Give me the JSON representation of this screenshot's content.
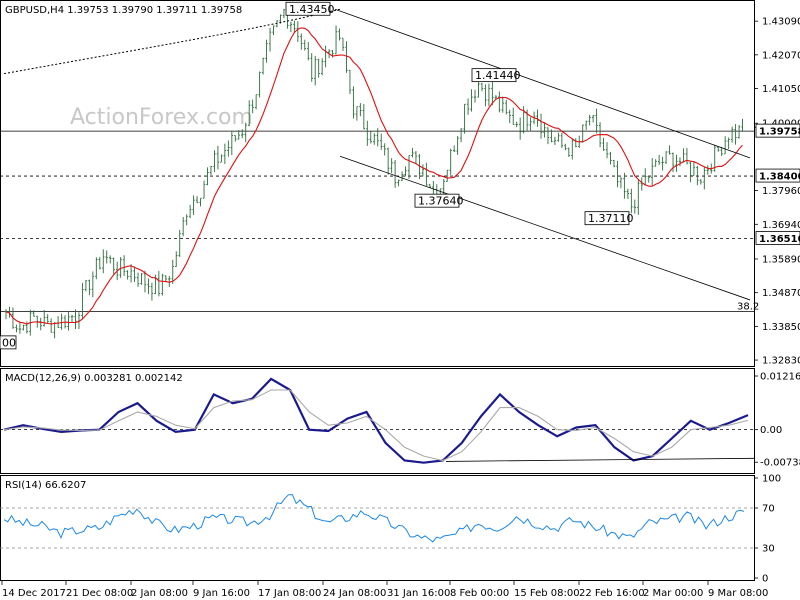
{
  "chart_data": [
    {
      "type": "candlestick",
      "panel": "price",
      "title": "GBPUSD,H4  1.39753 1.39790 1.39711 1.39758",
      "watermark": "ActionForex.com",
      "y_ticks": [
        "1.43090",
        "1.42070",
        "1.41050",
        "1.40000",
        "1.39880",
        "1.37960",
        "1.36940",
        "1.35890",
        "1.34870",
        "1.33850",
        "1.32830"
      ],
      "y_tick_values": [
        1.4309,
        1.4207,
        1.4105,
        1.4,
        1.3988,
        1.3796,
        1.3694,
        1.3589,
        1.3487,
        1.3385,
        1.3283
      ],
      "ylim": [
        1.3265,
        1.437
      ],
      "x_labels": [
        "14 Dec 2017",
        "21 Dec 08:00",
        "2 Jan 08:00",
        "9 Jan 16:00",
        "17 Jan 08:00",
        "24 Jan 08:00",
        "31 Jan 16:00",
        "8 Feb 00:00",
        "15 Feb 08:00",
        "22 Feb 16:00",
        "2 Mar 00:00",
        "9 Mar 08:00"
      ],
      "current_price": "1.39758",
      "horizontal_levels": [
        {
          "value": 1.384,
          "label": "1.38400",
          "style": "dashed"
        },
        {
          "value": 1.3651,
          "label": "1.36510",
          "style": "dashed"
        },
        {
          "value": 1.343,
          "label": "",
          "style": "solid"
        },
        {
          "value": 1.3976,
          "label": "",
          "style": "solid"
        }
      ],
      "fib_label": "38.2",
      "annotations": [
        {
          "label": "1.43450",
          "value": 1.4345
        },
        {
          "label": "1.41440",
          "value": 1.4144
        },
        {
          "label": "1.37640",
          "value": 1.3764
        },
        {
          "label": "1.37110",
          "value": 1.3711
        },
        {
          "label": "1.38400",
          "value": 1.384
        },
        {
          "label": "1.36510",
          "value": 1.3651
        },
        {
          "label": "00",
          "value": 1.3335
        }
      ],
      "channel_lines": [
        "upper trend line from 1.43450 through 1.41440",
        "lower channel line parallel from 1.37640"
      ],
      "long_ma": "dotted long-term moving average",
      "short_ma": "red moving average",
      "series_close_approx": [
        1.343,
        1.338,
        1.341,
        1.339,
        1.34,
        1.342,
        1.352,
        1.36,
        1.356,
        1.355,
        1.352,
        1.35,
        1.356,
        1.374,
        1.38,
        1.388,
        1.393,
        1.398,
        1.41,
        1.425,
        1.434,
        1.428,
        1.415,
        1.421,
        1.426,
        1.405,
        1.398,
        1.392,
        1.384,
        1.39,
        1.386,
        1.378,
        1.39,
        1.405,
        1.412,
        1.408,
        1.402,
        1.4,
        1.404,
        1.396,
        1.393,
        1.392,
        1.402,
        1.392,
        1.382,
        1.375,
        1.383,
        1.388,
        1.39,
        1.387,
        1.384,
        1.39,
        1.397,
        1.3976
      ]
    },
    {
      "type": "line",
      "panel": "macd",
      "title": "MACD(12,26,9) 0.003281 0.002142",
      "y_ticks": [
        "0.012164",
        "0.00",
        "-0.007384"
      ],
      "y_tick_values": [
        0.012164,
        0.0,
        -0.007384
      ],
      "ylim": [
        -0.0096,
        0.0133
      ],
      "series": [
        {
          "name": "MACD",
          "values": [
            0.0,
            0.001,
            0.0002,
            -0.0005,
            -0.0002,
            0.0,
            0.004,
            0.006,
            0.002,
            -0.0005,
            0.0,
            0.008,
            0.006,
            0.007,
            0.0115,
            0.009,
            0.0,
            -0.0003,
            0.0025,
            0.004,
            -0.003,
            -0.007,
            -0.0075,
            -0.007,
            -0.003,
            0.003,
            0.008,
            0.004,
            0.001,
            -0.0015,
            0.0005,
            0.001,
            -0.004,
            -0.007,
            -0.006,
            -0.002,
            0.002,
            0.0,
            0.0015,
            0.0033
          ]
        },
        {
          "name": "Signal",
          "values": [
            0.0,
            0.0006,
            0.0004,
            -0.0001,
            -0.0002,
            -0.0001,
            0.002,
            0.004,
            0.003,
            0.001,
            0.0002,
            0.005,
            0.0065,
            0.0068,
            0.009,
            0.009,
            0.004,
            0.001,
            0.0015,
            0.003,
            0.0,
            -0.004,
            -0.006,
            -0.007,
            -0.005,
            -0.0005,
            0.005,
            0.005,
            0.003,
            0.0,
            -0.0002,
            0.0005,
            -0.002,
            -0.005,
            -0.006,
            -0.004,
            0.0,
            0.0005,
            0.001,
            0.0021
          ]
        }
      ]
    },
    {
      "type": "line",
      "panel": "rsi",
      "title": "RSI(14) 66.6207",
      "y_ticks": [
        "100",
        "70",
        "30",
        "0"
      ],
      "y_tick_values": [
        100,
        70,
        30,
        0
      ],
      "ylim": [
        0,
        100
      ],
      "series": [
        {
          "name": "RSI",
          "values": [
            60,
            55,
            52,
            45,
            48,
            50,
            62,
            70,
            55,
            48,
            52,
            60,
            58,
            55,
            63,
            82,
            70,
            55,
            60,
            66,
            58,
            48,
            40,
            38,
            45,
            55,
            50,
            62,
            55,
            50,
            58,
            52,
            45,
            40,
            55,
            58,
            62,
            52,
            60,
            66.6
          ]
        }
      ]
    }
  ]
}
